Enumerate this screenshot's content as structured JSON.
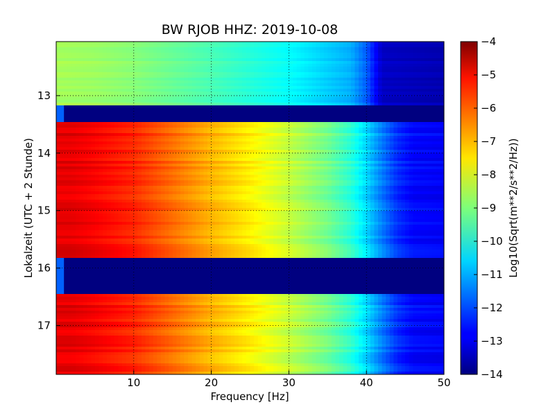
{
  "chart_data": {
    "type": "heatmap",
    "title": "BW RJOB HHZ: 2019-10-08",
    "xlabel": "Frequency [Hz]",
    "ylabel": "Lokalzeit (UTC + 2 Stunde)",
    "xlim": [
      0,
      50
    ],
    "ylim": [
      17.85,
      12.06
    ],
    "x_ticks": [
      10,
      20,
      30,
      40,
      50
    ],
    "y_ticks": [
      13,
      14,
      15,
      16,
      17
    ],
    "grid": true,
    "colormap": "jet",
    "colorbar": {
      "label": "Log10(Sqrt(m**2/s**2/Hz))",
      "min": -14,
      "max": -4,
      "ticks": [
        -4,
        -5,
        -6,
        -7,
        -8,
        -9,
        -10,
        -11,
        -12,
        -13,
        -14
      ]
    },
    "data_gaps_hours": [
      [
        13.17,
        13.47
      ],
      [
        15.83,
        16.43
      ]
    ],
    "profile": {
      "frequency_hz": [
        0,
        2,
        5,
        10,
        15,
        20,
        25,
        30,
        35,
        38,
        40,
        42,
        44,
        46,
        50
      ],
      "log10_amplitude": [
        -5.0,
        -5.0,
        -5.2,
        -5.6,
        -6.3,
        -7.0,
        -7.6,
        -8.3,
        -9.1,
        -9.8,
        -10.6,
        -11.5,
        -12.3,
        -12.7,
        -12.8
      ]
    },
    "early_segment_profile": {
      "hours": [
        12.06,
        13.17
      ],
      "frequency_hz": [
        0,
        5,
        10,
        20,
        30,
        38,
        40,
        42,
        50
      ],
      "log10_amplitude": [
        -8.6,
        -8.7,
        -8.9,
        -9.5,
        -10.2,
        -11.0,
        -11.8,
        -13.3,
        -13.5
      ]
    },
    "gap_value": -14
  }
}
